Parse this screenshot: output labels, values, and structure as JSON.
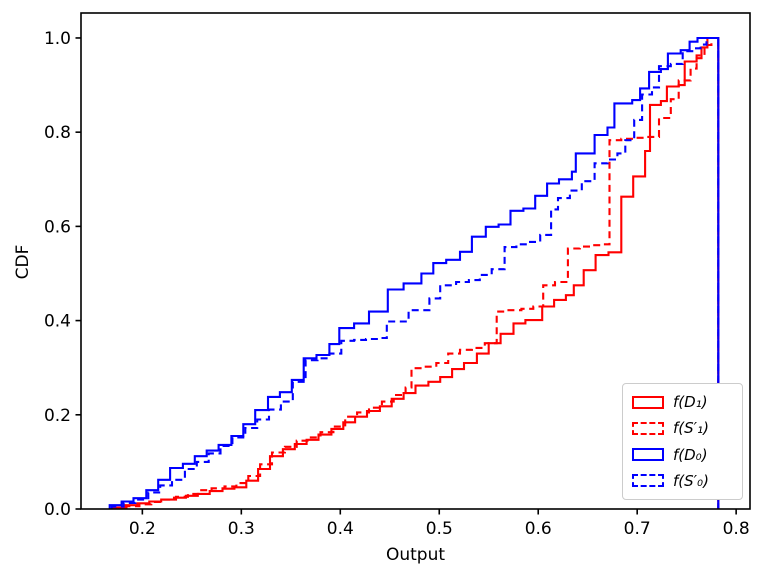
{
  "chart_data": {
    "type": "step_cdf_histogram",
    "title": "",
    "xlabel": "Output",
    "ylabel": "CDF",
    "xlim": [
      0.138,
      0.814
    ],
    "ylim": [
      0,
      1.053
    ],
    "grid": false,
    "legend_position": "lower right",
    "xticks": [
      0.2,
      0.3,
      0.4,
      0.5,
      0.6,
      0.7,
      0.8
    ],
    "xtick_labels": [
      "0.2",
      "0.3",
      "0.4",
      "0.5",
      "0.6",
      "0.7",
      "0.8"
    ],
    "yticks": [
      0.0,
      0.2,
      0.4,
      0.6,
      0.8,
      1.0
    ],
    "ytick_labels": [
      "0.0",
      "0.2",
      "0.4",
      "0.6",
      "0.8",
      "1.0"
    ],
    "bin_start": 0.167,
    "bin_end": 0.782,
    "series": [
      {
        "id": "f_D1",
        "name": "f(D₁)",
        "color": "#ff0000",
        "style": "solid",
        "points": [
          [
            0.17,
            0.003
          ],
          [
            0.182,
            0.008
          ],
          [
            0.195,
            0.012
          ],
          [
            0.207,
            0.016
          ],
          [
            0.219,
            0.02
          ],
          [
            0.232,
            0.024
          ],
          [
            0.244,
            0.028
          ],
          [
            0.256,
            0.032
          ],
          [
            0.268,
            0.038
          ],
          [
            0.281,
            0.043
          ],
          [
            0.293,
            0.046
          ],
          [
            0.305,
            0.06
          ],
          [
            0.317,
            0.085
          ],
          [
            0.329,
            0.112
          ],
          [
            0.342,
            0.127
          ],
          [
            0.354,
            0.138
          ],
          [
            0.366,
            0.147
          ],
          [
            0.378,
            0.158
          ],
          [
            0.391,
            0.17
          ],
          [
            0.403,
            0.184
          ],
          [
            0.415,
            0.196
          ],
          [
            0.427,
            0.208
          ],
          [
            0.44,
            0.218
          ],
          [
            0.452,
            0.234
          ],
          [
            0.464,
            0.246
          ],
          [
            0.476,
            0.262
          ],
          [
            0.489,
            0.27
          ],
          [
            0.501,
            0.28
          ],
          [
            0.513,
            0.297
          ],
          [
            0.525,
            0.31
          ],
          [
            0.538,
            0.33
          ],
          [
            0.55,
            0.352
          ],
          [
            0.562,
            0.372
          ],
          [
            0.575,
            0.394
          ],
          [
            0.587,
            0.401
          ],
          [
            0.604,
            0.43
          ],
          [
            0.616,
            0.444
          ],
          [
            0.628,
            0.454
          ],
          [
            0.636,
            0.475
          ],
          [
            0.646,
            0.507
          ],
          [
            0.658,
            0.539
          ],
          [
            0.671,
            0.545
          ],
          [
            0.684,
            0.663
          ],
          [
            0.696,
            0.706
          ],
          [
            0.708,
            0.76
          ],
          [
            0.713,
            0.858
          ],
          [
            0.724,
            0.866
          ],
          [
            0.73,
            0.897
          ],
          [
            0.742,
            0.9
          ],
          [
            0.748,
            0.95
          ],
          [
            0.76,
            0.957
          ],
          [
            0.765,
            0.98
          ],
          [
            0.771,
            1.0
          ]
        ]
      },
      {
        "id": "f_S1",
        "name": "f(S′₁)",
        "color": "#ff0000",
        "style": "dashed",
        "points": [
          [
            0.172,
            0.002
          ],
          [
            0.184,
            0.006
          ],
          [
            0.197,
            0.01
          ],
          [
            0.209,
            0.015
          ],
          [
            0.221,
            0.02
          ],
          [
            0.234,
            0.026
          ],
          [
            0.246,
            0.032
          ],
          [
            0.258,
            0.04
          ],
          [
            0.27,
            0.044
          ],
          [
            0.283,
            0.048
          ],
          [
            0.295,
            0.055
          ],
          [
            0.307,
            0.07
          ],
          [
            0.319,
            0.095
          ],
          [
            0.331,
            0.12
          ],
          [
            0.344,
            0.132
          ],
          [
            0.356,
            0.145
          ],
          [
            0.368,
            0.152
          ],
          [
            0.38,
            0.163
          ],
          [
            0.393,
            0.175
          ],
          [
            0.405,
            0.196
          ],
          [
            0.417,
            0.205
          ],
          [
            0.429,
            0.215
          ],
          [
            0.442,
            0.228
          ],
          [
            0.454,
            0.242
          ],
          [
            0.466,
            0.258
          ],
          [
            0.472,
            0.299
          ],
          [
            0.484,
            0.302
          ],
          [
            0.497,
            0.31
          ],
          [
            0.509,
            0.33
          ],
          [
            0.521,
            0.338
          ],
          [
            0.533,
            0.342
          ],
          [
            0.546,
            0.352
          ],
          [
            0.558,
            0.419
          ],
          [
            0.57,
            0.422
          ],
          [
            0.583,
            0.425
          ],
          [
            0.595,
            0.43
          ],
          [
            0.605,
            0.475
          ],
          [
            0.617,
            0.482
          ],
          [
            0.63,
            0.553
          ],
          [
            0.642,
            0.557
          ],
          [
            0.654,
            0.56
          ],
          [
            0.666,
            0.562
          ],
          [
            0.672,
            0.783
          ],
          [
            0.684,
            0.786
          ],
          [
            0.698,
            0.788
          ],
          [
            0.71,
            0.79
          ],
          [
            0.722,
            0.83
          ],
          [
            0.734,
            0.87
          ],
          [
            0.742,
            0.91
          ],
          [
            0.754,
            0.935
          ],
          [
            0.76,
            0.963
          ],
          [
            0.768,
            0.985
          ],
          [
            0.775,
            1.0
          ]
        ]
      },
      {
        "id": "f_D0",
        "name": "f(D₀)",
        "color": "#0000ff",
        "style": "solid",
        "points": [
          [
            0.167,
            0.008
          ],
          [
            0.179,
            0.016
          ],
          [
            0.191,
            0.023
          ],
          [
            0.204,
            0.04
          ],
          [
            0.216,
            0.062
          ],
          [
            0.228,
            0.087
          ],
          [
            0.241,
            0.096
          ],
          [
            0.253,
            0.112
          ],
          [
            0.265,
            0.124
          ],
          [
            0.277,
            0.136
          ],
          [
            0.29,
            0.155
          ],
          [
            0.302,
            0.18
          ],
          [
            0.314,
            0.21
          ],
          [
            0.327,
            0.238
          ],
          [
            0.339,
            0.248
          ],
          [
            0.351,
            0.274
          ],
          [
            0.363,
            0.32
          ],
          [
            0.376,
            0.327
          ],
          [
            0.389,
            0.35
          ],
          [
            0.399,
            0.384
          ],
          [
            0.414,
            0.394
          ],
          [
            0.429,
            0.419
          ],
          [
            0.448,
            0.466
          ],
          [
            0.464,
            0.479
          ],
          [
            0.482,
            0.5
          ],
          [
            0.494,
            0.522
          ],
          [
            0.507,
            0.529
          ],
          [
            0.521,
            0.546
          ],
          [
            0.533,
            0.578
          ],
          [
            0.547,
            0.599
          ],
          [
            0.56,
            0.604
          ],
          [
            0.572,
            0.633
          ],
          [
            0.585,
            0.638
          ],
          [
            0.597,
            0.665
          ],
          [
            0.609,
            0.691
          ],
          [
            0.621,
            0.7
          ],
          [
            0.634,
            0.716
          ],
          [
            0.638,
            0.755
          ],
          [
            0.657,
            0.794
          ],
          [
            0.67,
            0.81
          ],
          [
            0.677,
            0.861
          ],
          [
            0.695,
            0.868
          ],
          [
            0.703,
            0.893
          ],
          [
            0.712,
            0.928
          ],
          [
            0.724,
            0.934
          ],
          [
            0.731,
            0.967
          ],
          [
            0.744,
            0.974
          ],
          [
            0.753,
            0.992
          ],
          [
            0.761,
            1.0
          ]
        ]
      },
      {
        "id": "f_S0",
        "name": "f(S′₀)",
        "color": "#0000ff",
        "style": "dashed",
        "points": [
          [
            0.169,
            0.005
          ],
          [
            0.181,
            0.013
          ],
          [
            0.193,
            0.02
          ],
          [
            0.206,
            0.035
          ],
          [
            0.218,
            0.05
          ],
          [
            0.23,
            0.062
          ],
          [
            0.243,
            0.085
          ],
          [
            0.255,
            0.1
          ],
          [
            0.267,
            0.118
          ],
          [
            0.279,
            0.134
          ],
          [
            0.291,
            0.152
          ],
          [
            0.304,
            0.172
          ],
          [
            0.316,
            0.19
          ],
          [
            0.328,
            0.211
          ],
          [
            0.34,
            0.228
          ],
          [
            0.352,
            0.27
          ],
          [
            0.365,
            0.316
          ],
          [
            0.377,
            0.32
          ],
          [
            0.389,
            0.33
          ],
          [
            0.401,
            0.357
          ],
          [
            0.414,
            0.359
          ],
          [
            0.426,
            0.361
          ],
          [
            0.438,
            0.363
          ],
          [
            0.447,
            0.398
          ],
          [
            0.469,
            0.422
          ],
          [
            0.49,
            0.447
          ],
          [
            0.501,
            0.475
          ],
          [
            0.517,
            0.482
          ],
          [
            0.53,
            0.486
          ],
          [
            0.541,
            0.497
          ],
          [
            0.553,
            0.509
          ],
          [
            0.566,
            0.556
          ],
          [
            0.578,
            0.562
          ],
          [
            0.59,
            0.567
          ],
          [
            0.602,
            0.582
          ],
          [
            0.613,
            0.636
          ],
          [
            0.62,
            0.66
          ],
          [
            0.632,
            0.676
          ],
          [
            0.644,
            0.696
          ],
          [
            0.657,
            0.734
          ],
          [
            0.67,
            0.742
          ],
          [
            0.68,
            0.755
          ],
          [
            0.688,
            0.783
          ],
          [
            0.697,
            0.826
          ],
          [
            0.705,
            0.88
          ],
          [
            0.715,
            0.895
          ],
          [
            0.722,
            0.94
          ],
          [
            0.734,
            0.945
          ],
          [
            0.746,
            0.972
          ],
          [
            0.758,
            0.978
          ],
          [
            0.764,
            0.986
          ],
          [
            0.77,
            1.0
          ]
        ]
      }
    ]
  },
  "axes": {
    "xlabel": "Output",
    "ylabel": "CDF"
  },
  "legend": {
    "entries": [
      {
        "label": "f(D₁)",
        "color": "#ff0000",
        "style": "solid"
      },
      {
        "label": "f(S′₁)",
        "color": "#ff0000",
        "style": "dashed"
      },
      {
        "label": "f(D₀)",
        "color": "#0000ff",
        "style": "solid"
      },
      {
        "label": "f(S′₀)",
        "color": "#0000ff",
        "style": "dashed"
      }
    ]
  }
}
